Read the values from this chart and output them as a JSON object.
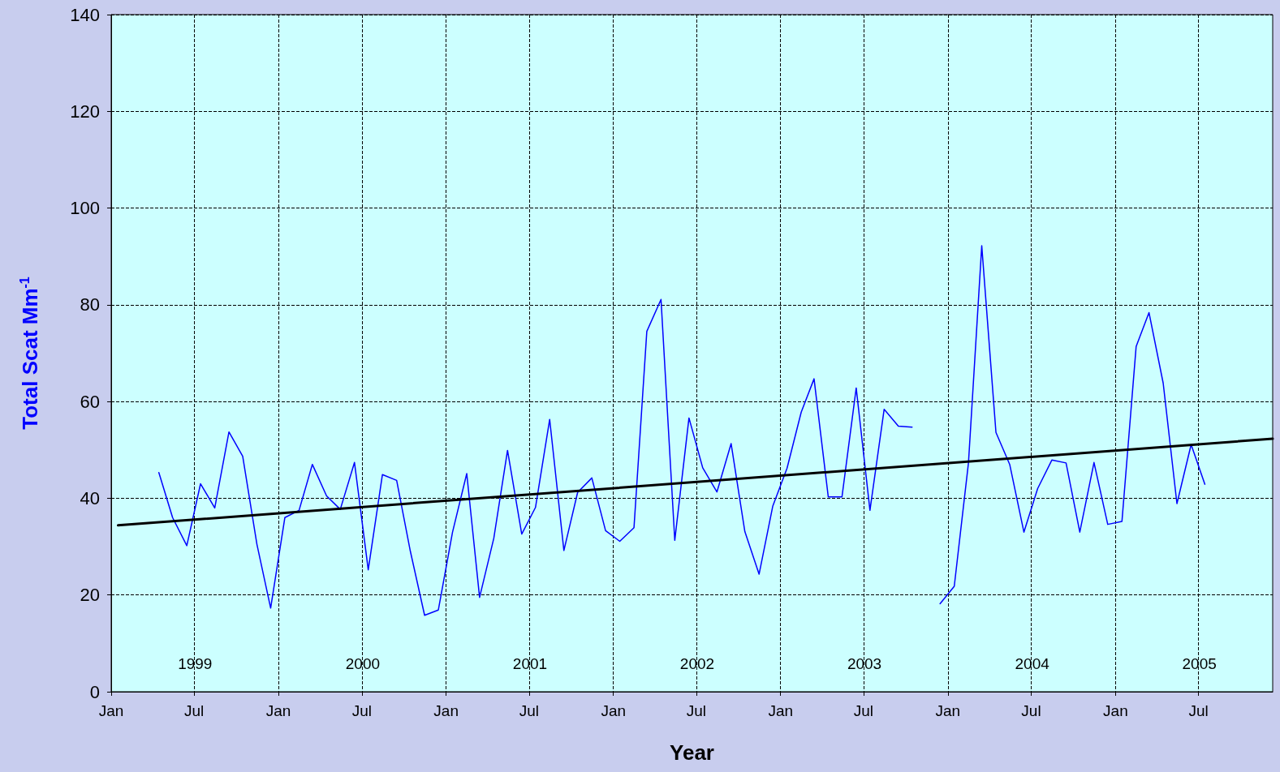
{
  "chart_data": {
    "type": "line",
    "xlabel": "Year",
    "ylabel": "Total Scat Mm$^{-1}$",
    "xlim": [
      "1999-01-01",
      "2005-12-10"
    ],
    "ylim": [
      0,
      140
    ],
    "yticks": [
      0,
      20,
      40,
      60,
      80,
      100,
      120,
      140
    ],
    "xticks": [
      {
        "value": "1999-01-01",
        "label": "Jan"
      },
      {
        "value": "1999-07-01",
        "label": "Jul"
      },
      {
        "value": "2000-01-01",
        "label": "Jan"
      },
      {
        "value": "2000-07-01",
        "label": "Jul"
      },
      {
        "value": "2001-01-01",
        "label": "Jan"
      },
      {
        "value": "2001-07-01",
        "label": "Jul"
      },
      {
        "value": "2002-01-01",
        "label": "Jan"
      },
      {
        "value": "2002-07-01",
        "label": "Jul"
      },
      {
        "value": "2003-01-01",
        "label": "Jan"
      },
      {
        "value": "2003-07-01",
        "label": "Jul"
      },
      {
        "value": "2004-01-01",
        "label": "Jan"
      },
      {
        "value": "2004-07-01",
        "label": "Jul"
      },
      {
        "value": "2005-01-01",
        "label": "Jan"
      },
      {
        "value": "2005-07-01",
        "label": "Jul"
      }
    ],
    "grid": true,
    "marker": "none",
    "line_style": "dashed",
    "series": [
      {
        "color": "#0000ff",
        "line_style": "solid",
        "x": [
          "1999-04-15",
          "1999-05-15",
          "1999-06-15",
          "1999-07-15",
          "1999-08-15",
          "1999-09-15",
          "1999-10-15",
          "1999-11-15",
          "1999-12-15",
          "2000-01-15",
          "2000-02-15",
          "2000-03-15",
          "2000-04-15",
          "2000-05-15",
          "2000-06-15",
          "2000-07-15",
          "2000-08-15",
          "2000-09-15",
          "2000-10-15",
          "2000-11-15",
          "2000-12-15",
          "2001-01-15",
          "2001-02-15",
          "2001-03-15",
          "2001-04-15",
          "2001-05-15",
          "2001-06-15",
          "2001-07-15",
          "2001-08-15",
          "2001-09-15",
          "2001-10-15",
          "2001-11-15",
          "2001-12-15",
          "2002-01-15",
          "2002-02-15",
          "2002-03-15",
          "2002-04-15",
          "2002-05-15",
          "2002-06-15",
          "2002-07-15",
          "2002-08-15",
          "2002-09-15",
          "2002-10-15",
          "2002-11-15",
          "2002-12-15",
          "2003-01-15",
          "2003-02-15",
          "2003-03-15",
          "2003-04-15",
          "2003-05-15",
          "2003-06-15",
          "2003-07-15",
          "2003-08-15",
          "2003-09-15",
          "2003-10-15",
          "2003-11-15",
          "2003-12-15",
          "2004-01-15",
          "2004-02-15",
          "2004-03-15",
          "2004-04-15",
          "2004-05-15",
          "2004-06-15",
          "2004-07-15",
          "2004-08-15",
          "2004-09-15",
          "2004-10-15",
          "2004-11-15",
          "2004-12-15",
          "2005-01-15",
          "2005-02-15",
          "2005-03-15",
          "2005-04-15",
          "2005-05-15",
          "2005-06-15",
          "2005-07-15"
        ],
        "values": [
          45.3,
          36,
          30.2,
          43,
          38,
          53.7,
          48.7,
          30.5,
          17.3,
          36,
          37.5,
          47,
          40.5,
          37.7,
          47.4,
          25.2,
          44.9,
          43.7,
          29,
          15.8,
          16.9,
          33,
          45.1,
          19.5,
          31.7,
          49.9,
          32.6,
          38.1,
          56.3,
          29.2,
          41.2,
          44.2,
          33.3,
          31.1,
          33.9,
          74.5,
          81.1,
          31.3,
          56.6,
          46.3,
          41.3,
          51.3,
          33.1,
          24.3,
          38.4,
          46.2,
          57.8,
          64.7,
          40.3,
          40.3,
          62.8,
          37.5,
          58.4,
          54.9,
          54.7,
          null,
          18.2,
          21.8,
          47.3,
          92.2,
          53.6,
          47,
          33,
          42,
          47.9,
          47.3,
          33,
          47.4,
          34.6,
          35.2,
          71.4,
          78.4,
          63.8,
          38.9,
          51.1,
          42.9
        ]
      },
      {
        "color": "#000000",
        "line_style": "solid",
        "x": [
          "1999-01-16",
          "2005-12-10"
        ],
        "values": [
          34.4,
          52.3
        ]
      }
    ],
    "annotations": [
      "1999",
      "2000",
      "2001",
      "2002",
      "2003",
      "2004",
      "2005"
    ]
  }
}
